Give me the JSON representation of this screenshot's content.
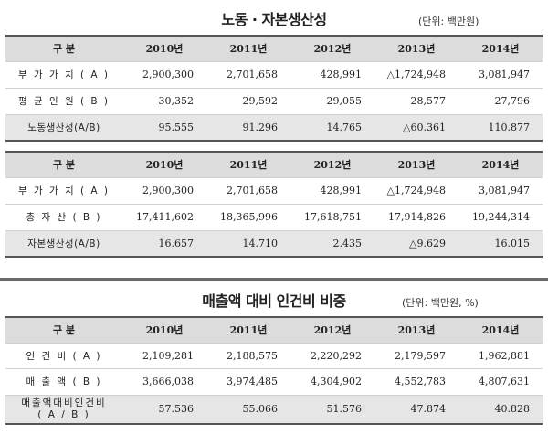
{
  "section1": {
    "title": "노동 · 자본생산성",
    "unit": "(단위: 백만원)",
    "headers": [
      "구  분",
      "2010년",
      "2011년",
      "2012년",
      "2013년",
      "2014년"
    ],
    "tables": [
      {
        "rows": [
          {
            "label": "부 가 가 치 ( A )",
            "values": [
              "2,900,300",
              "2,701,658",
              "428,991",
              "△1,724,948",
              "3,081,947"
            ]
          },
          {
            "label": "평 균 인 원 ( B )",
            "values": [
              "30,352",
              "29,592",
              "29,055",
              "28,577",
              "27,796"
            ]
          },
          {
            "label": "노동생산성(A/B)",
            "values": [
              "95.555",
              "91.296",
              "14.765",
              "△60.361",
              "110.877"
            ]
          }
        ]
      },
      {
        "rows": [
          {
            "label": "부 가 가 치 ( A )",
            "values": [
              "2,900,300",
              "2,701,658",
              "428,991",
              "△1,724,948",
              "3,081,947"
            ]
          },
          {
            "label": "총  자  산 ( B )",
            "values": [
              "17,411,602",
              "18,365,996",
              "17,618,751",
              "17,914,826",
              "19,244,314"
            ]
          },
          {
            "label": "자본생산성(A/B)",
            "values": [
              "16.657",
              "14.710",
              "2.435",
              "△9.629",
              "16.015"
            ]
          }
        ]
      }
    ]
  },
  "section2": {
    "title": "매출액 대비 인건비 비중",
    "unit": "(단위: 백만원, %)",
    "headers": [
      "구  분",
      "2010년",
      "2011년",
      "2012년",
      "2013년",
      "2014년"
    ],
    "rows": [
      {
        "label": "인 건 비 ( A )",
        "values": [
          "2,109,281",
          "2,188,575",
          "2,220,292",
          "2,179,597",
          "1,962,881"
        ]
      },
      {
        "label": "매 출 액 ( B )",
        "values": [
          "3,666,038",
          "3,974,485",
          "4,304,902",
          "4,552,783",
          "4,807,631"
        ]
      },
      {
        "label_line1": "매출액대비인건비",
        "label_line2": "( A / B )",
        "values": [
          "57.536",
          "55.066",
          "51.576",
          "47.874",
          "40.828"
        ]
      }
    ]
  }
}
